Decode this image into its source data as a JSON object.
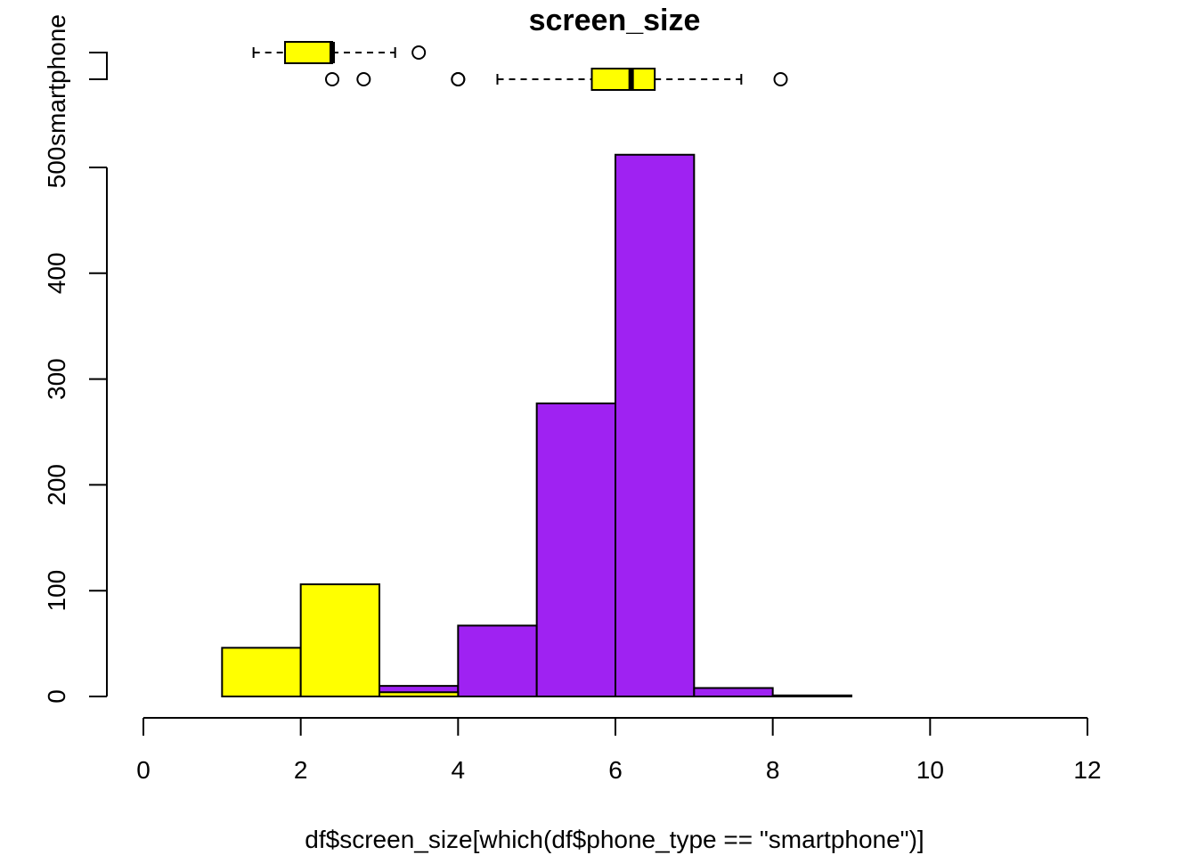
{
  "chart_data": {
    "type": "bar",
    "title": "screen_size",
    "xlabel": "df$screen_size[which(df$phone_type == \"smartphone\")]",
    "ylabel": "",
    "xlim": [
      0,
      12
    ],
    "ylim": [
      0,
      500
    ],
    "x_ticks": [
      "0",
      "2",
      "4",
      "6",
      "8",
      "10",
      "12"
    ],
    "y_ticks": [
      "0",
      "100",
      "200",
      "300",
      "400",
      "500"
    ],
    "bin_edges": [
      0,
      1,
      2,
      3,
      4,
      5,
      6,
      7,
      8,
      9,
      10
    ],
    "series": [
      {
        "color": "#9f22f2",
        "values": [
          0,
          0,
          0,
          10,
          67,
          277,
          512,
          8,
          1,
          0
        ]
      },
      {
        "color": "#ffff00",
        "values": [
          0,
          46,
          106,
          4,
          0,
          0,
          0,
          0,
          0,
          0
        ]
      }
    ],
    "boxplots": {
      "group_labels": [
        "smartphone"
      ],
      "items": [
        {
          "color": "#ffff00",
          "whisker_low": 1.4,
          "q1": 1.8,
          "median": 2.4,
          "q3": 2.4,
          "whisker_high": 3.2,
          "outliers": [
            3.5
          ]
        },
        {
          "color": "#ffff00",
          "whisker_low": 4.5,
          "q1": 5.7,
          "median": 6.2,
          "q3": 6.5,
          "whisker_high": 7.6,
          "outliers": [
            2.4,
            2.8,
            4.0,
            4.0,
            8.1
          ]
        }
      ]
    }
  }
}
